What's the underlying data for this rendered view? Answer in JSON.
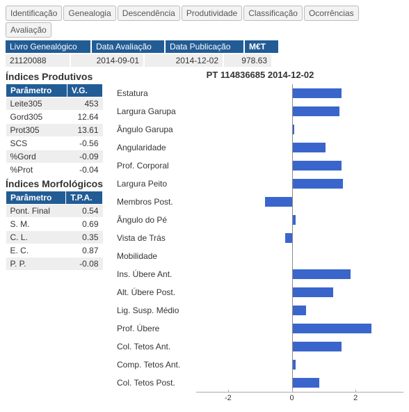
{
  "colors": {
    "brand": "#225c95",
    "bar": "#3a66cc",
    "row_alt": "#eeeeee"
  },
  "tabs": [
    "Identificação",
    "Genealogia",
    "Descendência",
    "Produtividade",
    "Classificação",
    "Ocorrências",
    "Avaliação"
  ],
  "header": {
    "cols": [
      {
        "label": "Livro Genealógico",
        "value": "21120088",
        "hw": 110,
        "vw": 80
      },
      {
        "label": "Data Avaliação",
        "value": "2014-09-01",
        "hw": 92,
        "vw": 92
      },
      {
        "label": "Data Publicação",
        "value": "2014-12-02",
        "hw": 100,
        "vw": 100
      },
      {
        "label": "M€T",
        "value": "978.63",
        "hw": 36,
        "vw": 56
      }
    ]
  },
  "productive": {
    "title": "Índices Produtivos",
    "headers": [
      "Parâmetro",
      "V.G."
    ],
    "rows": [
      {
        "p": "Leite305",
        "v": "453"
      },
      {
        "p": "Gord305",
        "v": "12.64"
      },
      {
        "p": "Prot305",
        "v": "13.61"
      },
      {
        "p": "SCS",
        "v": "-0.56"
      },
      {
        "p": "%Gord",
        "v": "-0.09"
      },
      {
        "p": "%Prot",
        "v": "-0.04"
      }
    ]
  },
  "morpho": {
    "title": "Índices Morfológicos",
    "headers": [
      "Parâmetro",
      "T.P.A."
    ],
    "rows": [
      {
        "p": "Pont. Final",
        "v": "0.54"
      },
      {
        "p": "S. M.",
        "v": "0.69"
      },
      {
        "p": "C. L.",
        "v": "0.35"
      },
      {
        "p": "E. C.",
        "v": "0.87"
      },
      {
        "p": "P. P.",
        "v": "-0.08"
      }
    ]
  },
  "chart": {
    "title": "PT 114836685 2014-12-02",
    "xmin": -3,
    "xmax": 3.5,
    "xticks": [
      -2,
      0,
      2
    ],
    "bar_color": "#3a66cc",
    "rows": [
      {
        "label": "Estatura",
        "value": 1.55
      },
      {
        "label": "Largura Garupa",
        "value": 1.5
      },
      {
        "label": "Ângulo Garupa",
        "value": 0.07
      },
      {
        "label": "Angularidade",
        "value": 1.05
      },
      {
        "label": "Prof. Corporal",
        "value": 1.55
      },
      {
        "label": "Largura Peito",
        "value": 1.6
      },
      {
        "label": "Membros Post.",
        "value": -0.85
      },
      {
        "label": "Ângulo do Pé",
        "value": 0.12
      },
      {
        "label": "Vista de Trás",
        "value": -0.2
      },
      {
        "label": "Mobilidade",
        "value": 0.0
      },
      {
        "label": "Ins. Úbere Ant.",
        "value": 1.85
      },
      {
        "label": "Alt. Úbere Post.",
        "value": 1.3
      },
      {
        "label": "Lig. Susp. Médio",
        "value": 0.45
      },
      {
        "label": "Prof. Úbere",
        "value": 2.5
      },
      {
        "label": "Col. Tetos Ant.",
        "value": 1.55
      },
      {
        "label": "Comp. Tetos Ant.",
        "value": 0.12
      },
      {
        "label": "Col. Tetos Post.",
        "value": 0.85
      }
    ]
  }
}
